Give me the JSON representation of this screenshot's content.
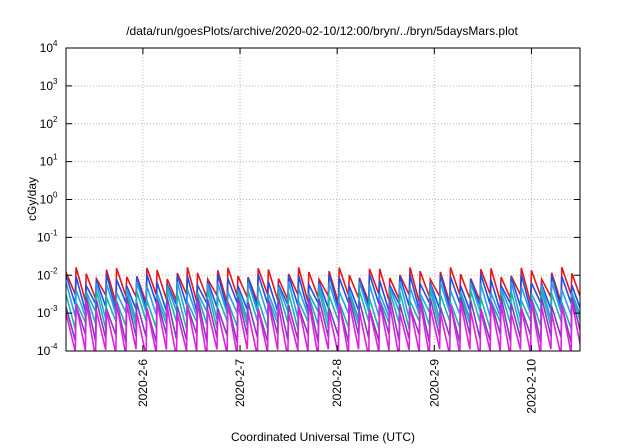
{
  "chart_data": {
    "type": "line",
    "title": "/data/run/goesPlots/archive/2020-02-10/12:00/bryn/../bryn/5daysMars.plot",
    "xlabel": "Coordinated Universal Time (UTC)",
    "ylabel": "cGy/day",
    "yscale": "log",
    "ylim": [
      0.0001,
      10000
    ],
    "y_ticks": [
      {
        "base": "10",
        "exp": "-4"
      },
      {
        "base": "10",
        "exp": "-3"
      },
      {
        "base": "10",
        "exp": "-2"
      },
      {
        "base": "10",
        "exp": "-1"
      },
      {
        "base": "10",
        "exp": "0"
      },
      {
        "base": "10",
        "exp": "1"
      },
      {
        "base": "10",
        "exp": "2"
      },
      {
        "base": "10",
        "exp": "3"
      },
      {
        "base": "10",
        "exp": "4"
      }
    ],
    "x_range_days": [
      "2020-02-05 05:00",
      "2020-02-10 12:00"
    ],
    "x_ticks": [
      "2020-2-6",
      "2020-2-7",
      "2020-2-8",
      "2020-2-9",
      "2020-2-10"
    ],
    "grid": true,
    "legend": "none",
    "sawtooth_period_hours": 2.5,
    "series": [
      {
        "color": "#e8141b",
        "peak": 0.012,
        "trough": 0.0025
      },
      {
        "color": "#1f4fe0",
        "peak": 0.008,
        "trough": 0.0015
      },
      {
        "color": "#2a9de8",
        "peak": 0.005,
        "trough": 0.0009
      },
      {
        "color": "#20b2aa",
        "peak": 0.003,
        "trough": 0.0005
      },
      {
        "color": "#7b3fbf",
        "peak": 0.002,
        "trough": 0.00022
      },
      {
        "color": "#e020e0",
        "peak": 0.0015,
        "trough": 9e-05
      }
    ]
  }
}
